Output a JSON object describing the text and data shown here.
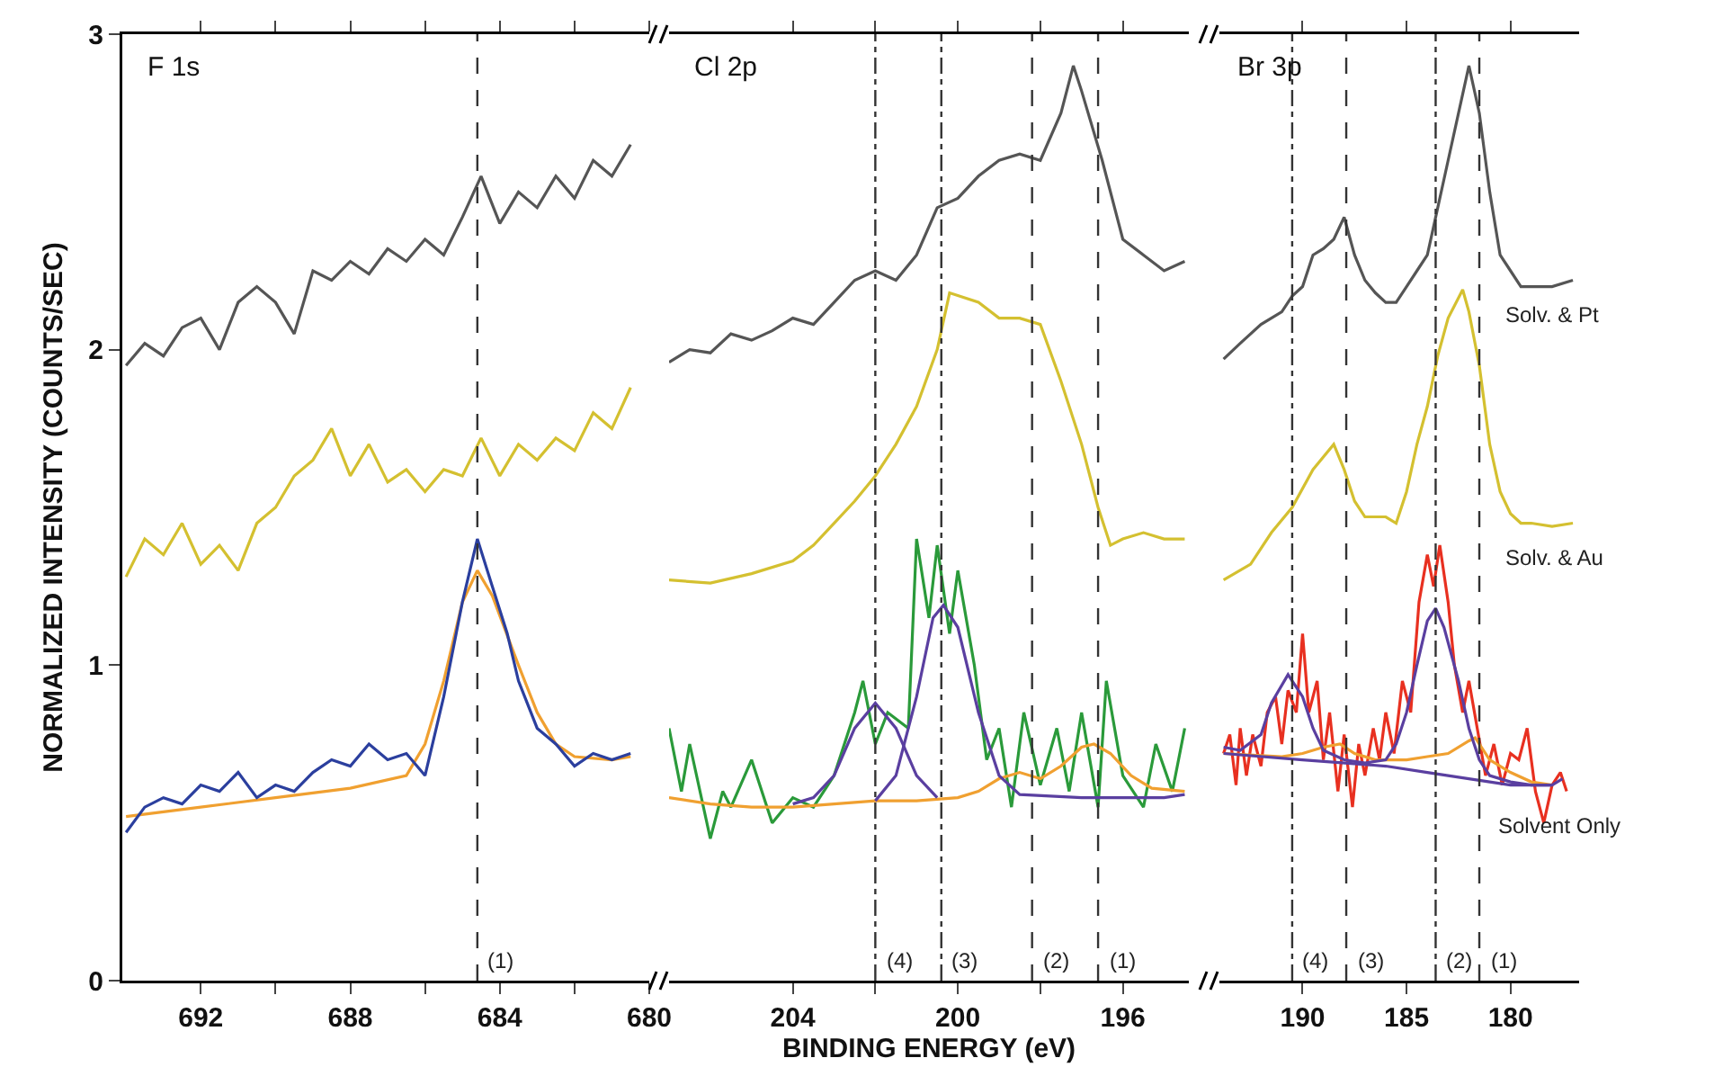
{
  "chart_data": [
    {
      "type": "line",
      "title": "F 1s",
      "ylabel": "NORMALIZED INTENSITY (COUNTS/SEC)",
      "xlim": [
        694.1,
        680
      ],
      "xticks": [
        692,
        {
          "value": 690,
          "label": null
        },
        688,
        {
          "value": 686,
          "label": null
        },
        684,
        {
          "value": 682,
          "label": null
        },
        680
      ],
      "ylim": [
        0,
        3
      ],
      "yticks": [
        0,
        1,
        2,
        3
      ],
      "series": [
        {
          "color": "#555555",
          "x": [
            694,
            693.5,
            693,
            692.5,
            692,
            691.5,
            691,
            690.5,
            690,
            689.5,
            689,
            688.5,
            688,
            687.5,
            687,
            686.5,
            686,
            685.5,
            685,
            684.5,
            684,
            683.5,
            683,
            682.5,
            682,
            681.5,
            681,
            680.5
          ],
          "values": [
            1.95,
            2.02,
            1.98,
            2.07,
            2.1,
            2.0,
            2.15,
            2.2,
            2.15,
            2.05,
            2.25,
            2.22,
            2.28,
            2.24,
            2.32,
            2.28,
            2.35,
            2.3,
            2.42,
            2.55,
            2.4,
            2.5,
            2.45,
            2.55,
            2.48,
            2.6,
            2.55,
            2.65
          ]
        },
        {
          "color": "#d4c030",
          "x": [
            694,
            693.5,
            693,
            692.5,
            692,
            691.5,
            691,
            690.5,
            690,
            689.5,
            689,
            688.5,
            688,
            687.5,
            687,
            686.5,
            686,
            685.5,
            685,
            684.5,
            684,
            683.5,
            683,
            682.5,
            682,
            681.5,
            681,
            680.5
          ],
          "values": [
            1.28,
            1.4,
            1.35,
            1.45,
            1.32,
            1.38,
            1.3,
            1.45,
            1.5,
            1.6,
            1.65,
            1.75,
            1.6,
            1.7,
            1.58,
            1.62,
            1.55,
            1.62,
            1.6,
            1.72,
            1.6,
            1.7,
            1.65,
            1.72,
            1.68,
            1.8,
            1.75,
            1.88
          ]
        },
        {
          "color": "#f0a030",
          "x": [
            694,
            692,
            690,
            688,
            686.5,
            686,
            685.5,
            685,
            684.6,
            684.2,
            683.5,
            683,
            682.5,
            682,
            681,
            680.5
          ],
          "values": [
            0.52,
            0.55,
            0.58,
            0.61,
            0.65,
            0.75,
            0.95,
            1.2,
            1.3,
            1.22,
            1.0,
            0.85,
            0.75,
            0.71,
            0.7,
            0.71
          ]
        },
        {
          "color": "#2b3f9e",
          "x": [
            694,
            693.5,
            693,
            692.5,
            692,
            691.5,
            691,
            690.5,
            690,
            689.5,
            689,
            688.5,
            688,
            687.5,
            687,
            686.5,
            686,
            685.5,
            685,
            684.6,
            684.2,
            683.8,
            683.5,
            683,
            682.5,
            682,
            681.5,
            681,
            680.5
          ],
          "values": [
            0.47,
            0.55,
            0.58,
            0.56,
            0.62,
            0.6,
            0.66,
            0.58,
            0.62,
            0.6,
            0.66,
            0.7,
            0.68,
            0.75,
            0.7,
            0.72,
            0.65,
            0.9,
            1.2,
            1.4,
            1.25,
            1.1,
            0.95,
            0.8,
            0.75,
            0.68,
            0.72,
            0.7,
            0.72
          ]
        }
      ],
      "ref_lines": [
        {
          "axis": "x",
          "value": 684.6,
          "line_style": "dashed"
        }
      ],
      "annotations": [
        {
          "text": "(1)",
          "x": 684.6,
          "y": 0
        }
      ]
    },
    {
      "type": "line",
      "title": "Cl 2p",
      "xlabel": "BINDING ENERGY (eV)",
      "tick_labels": "x",
      "xlim": [
        207,
        194.4
      ],
      "xticks": [
        204,
        {
          "value": 202,
          "label": null
        },
        200,
        {
          "value": 198,
          "label": null
        },
        196
      ],
      "ylim": [
        0,
        3
      ],
      "series": [
        {
          "color": "#555555",
          "x": [
            207,
            206.5,
            206,
            205.5,
            205,
            204.5,
            204,
            203.5,
            203,
            202.5,
            202,
            201.5,
            201,
            200.5,
            200,
            199.5,
            199,
            198.5,
            198,
            197.5,
            197.2,
            197,
            196.5,
            196,
            195.5,
            195,
            194.5
          ],
          "values": [
            1.96,
            2.0,
            1.99,
            2.05,
            2.03,
            2.06,
            2.1,
            2.08,
            2.15,
            2.22,
            2.25,
            2.22,
            2.3,
            2.45,
            2.48,
            2.55,
            2.6,
            2.62,
            2.6,
            2.75,
            2.9,
            2.82,
            2.6,
            2.35,
            2.3,
            2.25,
            2.28
          ]
        },
        {
          "color": "#d4c030",
          "x": [
            207,
            206,
            205,
            204,
            203.5,
            203,
            202.5,
            202,
            201.5,
            201,
            200.5,
            200.2,
            199.5,
            199,
            198.5,
            198,
            197.5,
            197,
            196.6,
            196.3,
            196,
            195.5,
            195,
            194.5
          ],
          "values": [
            1.27,
            1.26,
            1.29,
            1.33,
            1.38,
            1.45,
            1.52,
            1.6,
            1.7,
            1.82,
            2.0,
            2.18,
            2.15,
            2.1,
            2.1,
            2.08,
            1.9,
            1.7,
            1.5,
            1.38,
            1.4,
            1.42,
            1.4,
            1.4
          ]
        },
        {
          "color": "#2a9a3a",
          "x": [
            207,
            206.7,
            206.5,
            206,
            205.7,
            205.5,
            205,
            204.5,
            204,
            203.5,
            203,
            202.5,
            202.3,
            202,
            201.7,
            201.2,
            201,
            200.7,
            200.5,
            200.2,
            200,
            199.6,
            199.3,
            199,
            198.7,
            198.4,
            198,
            197.6,
            197.3,
            197,
            196.6,
            196.4,
            196,
            195.5,
            195.2,
            194.8,
            194.5
          ],
          "values": [
            0.8,
            0.6,
            0.75,
            0.45,
            0.6,
            0.55,
            0.7,
            0.5,
            0.58,
            0.55,
            0.65,
            0.85,
            0.95,
            0.75,
            0.85,
            0.8,
            1.4,
            1.15,
            1.38,
            1.1,
            1.3,
            1.0,
            0.7,
            0.8,
            0.55,
            0.85,
            0.62,
            0.8,
            0.6,
            0.85,
            0.55,
            0.95,
            0.65,
            0.55,
            0.75,
            0.6,
            0.8
          ]
        },
        {
          "color": "#f0a030",
          "x": [
            207,
            206,
            205,
            204,
            203,
            202,
            201,
            200,
            199.5,
            199,
            198.5,
            198,
            197.5,
            197,
            196.7,
            196.3,
            195.8,
            195.3,
            194.5
          ],
          "values": [
            0.58,
            0.56,
            0.55,
            0.55,
            0.56,
            0.57,
            0.57,
            0.58,
            0.6,
            0.64,
            0.66,
            0.64,
            0.68,
            0.74,
            0.75,
            0.72,
            0.65,
            0.61,
            0.6
          ]
        },
        {
          "color": "#5a3fa0",
          "x": [
            204,
            203.5,
            203,
            202.5,
            202,
            201.5,
            201,
            200.5
          ],
          "values": [
            0.56,
            0.58,
            0.65,
            0.8,
            0.88,
            0.8,
            0.65,
            0.58
          ]
        },
        {
          "color": "#5a3fa0",
          "x": [
            202,
            201.5,
            201,
            200.6,
            200.35,
            200,
            199.5,
            199,
            198.5,
            197,
            195,
            194.5
          ],
          "values": [
            0.57,
            0.65,
            0.9,
            1.15,
            1.19,
            1.12,
            0.85,
            0.65,
            0.59,
            0.58,
            0.58,
            0.59
          ]
        }
      ],
      "ref_lines": [
        {
          "axis": "x",
          "value": 202,
          "line_style": "dashdot"
        },
        {
          "axis": "x",
          "value": 200.4,
          "line_style": "dashdot"
        },
        {
          "axis": "x",
          "value": 198.2,
          "line_style": "dashed"
        },
        {
          "axis": "x",
          "value": 196.6,
          "line_style": "dashed"
        }
      ],
      "annotations": [
        {
          "text": "(4)",
          "x": 202,
          "y": 0
        },
        {
          "text": "(3)",
          "x": 200.4,
          "y": 0
        },
        {
          "text": "(2)",
          "x": 198.2,
          "y": 0
        },
        {
          "text": "(1)",
          "x": 196.6,
          "y": 0
        }
      ]
    },
    {
      "type": "line",
      "title": "Br 3p",
      "tick_labels": "x",
      "xlim": [
        194,
        176.7
      ],
      "xticks": [
        190,
        185,
        180
      ],
      "ylim": [
        0,
        3
      ],
      "series": [
        {
          "name": "Solv. & Pt",
          "color": "#555555",
          "x": [
            193.8,
            193,
            192,
            191,
            190.5,
            190,
            189.5,
            189,
            188.5,
            188,
            187.5,
            187,
            186.5,
            186,
            185.5,
            185,
            184.5,
            184,
            183.5,
            183,
            182.5,
            182,
            181.5,
            181,
            180.5,
            180,
            179.5,
            179,
            178,
            177
          ],
          "values": [
            1.97,
            2.02,
            2.08,
            2.12,
            2.17,
            2.2,
            2.3,
            2.32,
            2.35,
            2.42,
            2.3,
            2.22,
            2.18,
            2.15,
            2.15,
            2.2,
            2.25,
            2.3,
            2.45,
            2.6,
            2.75,
            2.9,
            2.75,
            2.5,
            2.3,
            2.25,
            2.2,
            2.2,
            2.2,
            2.22
          ]
        },
        {
          "name": "Solv. & Au",
          "color": "#d4c030",
          "x": [
            193.8,
            192.5,
            191.5,
            190.5,
            189.5,
            188.5,
            188,
            187.5,
            187,
            186,
            185.5,
            185,
            184.5,
            184,
            183.5,
            183,
            182.3,
            182,
            181.5,
            181,
            180.5,
            180,
            179.5,
            179,
            178,
            177
          ],
          "values": [
            1.27,
            1.32,
            1.42,
            1.5,
            1.62,
            1.7,
            1.62,
            1.52,
            1.47,
            1.47,
            1.45,
            1.55,
            1.7,
            1.82,
            1.98,
            2.1,
            2.19,
            2.12,
            1.95,
            1.7,
            1.55,
            1.48,
            1.45,
            1.45,
            1.44,
            1.45
          ]
        },
        {
          "name": "Solvent Only",
          "color": "#e83020",
          "x": [
            193.8,
            193.5,
            193.2,
            193,
            192.7,
            192.4,
            192,
            191.7,
            191.3,
            191,
            190.7,
            190.3,
            190,
            189.7,
            189.3,
            189,
            188.7,
            188.3,
            188,
            187.6,
            187.3,
            187,
            186.6,
            186.3,
            186,
            185.6,
            185.2,
            184.8,
            184.4,
            184,
            183.7,
            183.4,
            183,
            182.7,
            182.3,
            182,
            181.6,
            181.2,
            180.8,
            180.4,
            180,
            179.6,
            179.2,
            178.8,
            178.4,
            178,
            177.6,
            177.3
          ],
          "values": [
            0.72,
            0.78,
            0.62,
            0.8,
            0.65,
            0.78,
            0.68,
            0.85,
            0.9,
            0.75,
            0.92,
            0.85,
            1.1,
            0.85,
            0.95,
            0.7,
            0.85,
            0.6,
            0.78,
            0.55,
            0.75,
            0.65,
            0.8,
            0.7,
            0.85,
            0.72,
            0.95,
            0.85,
            1.2,
            1.35,
            1.25,
            1.38,
            1.2,
            1.0,
            0.85,
            0.95,
            0.8,
            0.65,
            0.75,
            0.62,
            0.72,
            0.7,
            0.8,
            0.6,
            0.5,
            0.62,
            0.66,
            0.6
          ]
        },
        {
          "color": "#f0a030",
          "x": [
            193.8,
            191,
            190,
            189,
            188.2,
            187.5,
            186.5,
            185,
            184,
            183,
            182,
            181.7,
            181,
            180,
            179,
            178
          ],
          "values": [
            0.72,
            0.71,
            0.72,
            0.74,
            0.75,
            0.72,
            0.7,
            0.7,
            0.71,
            0.72,
            0.76,
            0.77,
            0.7,
            0.66,
            0.63,
            0.62
          ]
        },
        {
          "color": "#5a3fa0",
          "x": [
            193.8,
            193,
            192,
            191.5,
            190.7,
            190,
            189.5,
            189,
            188,
            187,
            186,
            185.5,
            185,
            184.5,
            184,
            183.6,
            183.2,
            182.5,
            182,
            181.5,
            181,
            180,
            179,
            178,
            177.5
          ],
          "values": [
            0.74,
            0.73,
            0.78,
            0.88,
            0.97,
            0.9,
            0.8,
            0.73,
            0.7,
            0.69,
            0.7,
            0.75,
            0.85,
            1.0,
            1.14,
            1.18,
            1.12,
            0.95,
            0.8,
            0.7,
            0.65,
            0.63,
            0.62,
            0.62,
            0.64
          ]
        },
        {
          "color": "#5a3fa0",
          "x": [
            193.8,
            190,
            186,
            184,
            182,
            180,
            178
          ],
          "values": [
            0.72,
            0.7,
            0.68,
            0.66,
            0.64,
            0.62,
            0.62
          ]
        }
      ],
      "ref_lines": [
        {
          "axis": "x",
          "value": 190.5,
          "line_style": "dashdot"
        },
        {
          "axis": "x",
          "value": 187.9,
          "line_style": "dashed"
        },
        {
          "axis": "x",
          "value": 183.6,
          "line_style": "dashdot"
        },
        {
          "axis": "x",
          "value": 181.5,
          "line_style": "dashed"
        }
      ],
      "annotations": [
        {
          "text": "(4)",
          "x": 190.5,
          "y": 0
        },
        {
          "text": "(3)",
          "x": 187.9,
          "y": 0
        },
        {
          "text": "(2)",
          "x": 183.6,
          "y": 0
        },
        {
          "text": "(1)",
          "x": 181.5,
          "y": 0
        }
      ]
    }
  ]
}
